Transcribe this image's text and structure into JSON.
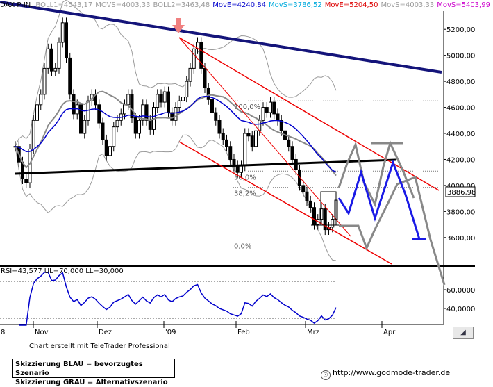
{
  "header": {
    "symbol": "DAX P-IN.",
    "boll1": "BOLL1=4543,17",
    "movs1": "MOVS=4003,33",
    "boll2": "BOLL2=3463,48",
    "move": "MovE=4240,84",
    "movs2": "MovS=3786,52",
    "move2": "MovE=5204,50",
    "movs3": "MovS=4003,33",
    "movs4": "MovS=5403,99"
  },
  "colors": {
    "boll": "#9a9a9a",
    "movs1": "#9a9a9a",
    "move": "#0000cc",
    "movs2": "#00aadd",
    "move2": "#dd0000",
    "movs4": "#cc00cc",
    "trend_dark_blue": "#14147a",
    "channel_red": "#ee0000",
    "scenario_blue": "#1a1ae6",
    "scenario_gray": "#888888"
  },
  "rsi": {
    "label": "RSI=43,577 UL=70,000 LL=30,000",
    "ticks": [
      "60,0000",
      "40,0000"
    ]
  },
  "footer": {
    "credit": "Chart erstellt mit TeleTrader Professional",
    "legend_blue": "Skizzierung BLAU = bevorzugtes Szenario",
    "legend_gray": "Skizzierung GRAU = Alternativszenario",
    "url": "http://www.godmode-trader.de"
  },
  "chart_data": {
    "type": "candlestick",
    "title": "DAX P-IN.",
    "y_ticks": [
      "5200,00",
      "5000,00",
      "4800,00",
      "4600,00",
      "4400,00",
      "4200,00",
      "4000,00",
      "3800,00",
      "3600,00"
    ],
    "ylim": [
      3380,
      5340
    ],
    "x_ticks": [
      "Nov",
      "Dez",
      "'09",
      "Feb",
      "Mrz",
      "Apr"
    ],
    "x_first_label": "8",
    "last_price": "3886,98",
    "fib_levels": [
      {
        "label": "100,0%",
        "value": 4650
      },
      {
        "label": "50,0%",
        "value": 4110
      },
      {
        "label": "38,2%",
        "value": 3985
      },
      {
        "label": "0,0%",
        "value": 3580
      }
    ],
    "signal_arrow_value": 5200,
    "closes": [
      4300,
      4180,
      4050,
      4020,
      4280,
      4500,
      4620,
      4700,
      4900,
      5050,
      4880,
      4900,
      5100,
      5250,
      4980,
      4700,
      4550,
      4620,
      4400,
      4500,
      4650,
      4700,
      4620,
      4480,
      4350,
      4230,
      4300,
      4450,
      4500,
      4550,
      4620,
      4700,
      4520,
      4400,
      4500,
      4620,
      4500,
      4430,
      4600,
      4700,
      4640,
      4720,
      4560,
      4500,
      4600,
      4650,
      4680,
      4800,
      4900,
      5050,
      5100,
      4900,
      4750,
      4660,
      4560,
      4500,
      4400,
      4350,
      4300,
      4200,
      4150,
      4100,
      4150,
      4400,
      4380,
      4300,
      4420,
      4500,
      4600,
      4560,
      4640,
      4550,
      4500,
      4420,
      4350,
      4300,
      4200,
      4120,
      4000,
      3950,
      3880,
      3830,
      3700,
      3740,
      3820,
      3660,
      3680,
      3740,
      3886.98
    ]
  }
}
